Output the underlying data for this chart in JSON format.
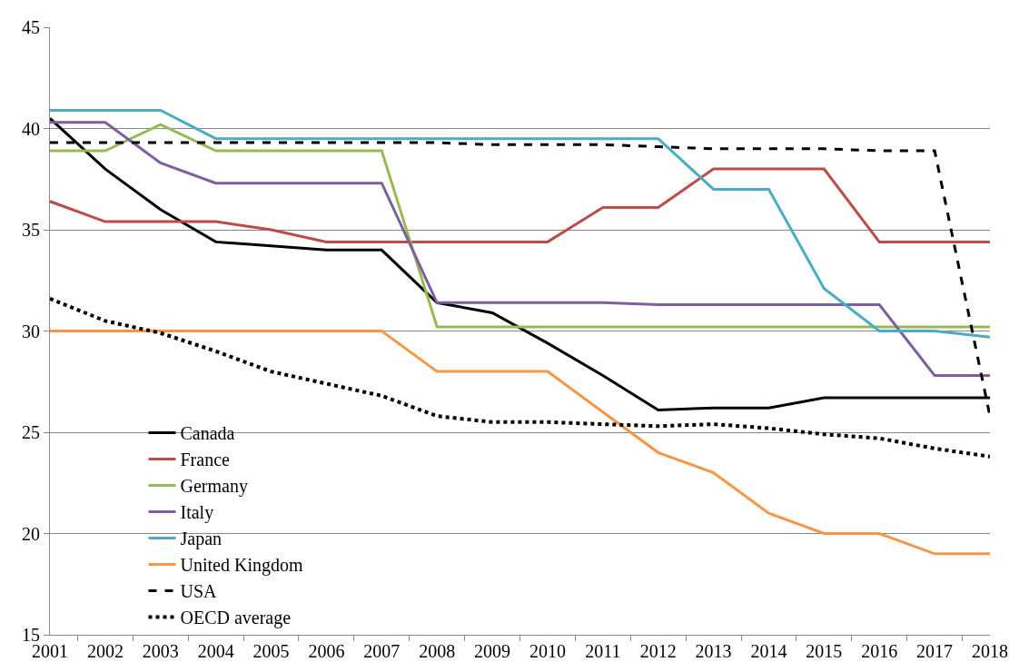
{
  "chart_data": {
    "type": "line",
    "categories": [
      "2001",
      "2002",
      "2003",
      "2004",
      "2005",
      "2006",
      "2007",
      "2008",
      "2009",
      "2010",
      "2011",
      "2012",
      "2013",
      "2014",
      "2015",
      "2016",
      "2017",
      "2018"
    ],
    "series": [
      {
        "name": "Canada",
        "color": "#000000",
        "line_style": "solid",
        "values": [
          40.5,
          38,
          36,
          34.4,
          34.2,
          34,
          34,
          31.4,
          30.9,
          29.4,
          27.8,
          26.1,
          26.2,
          26.2,
          26.7,
          26.7,
          26.7,
          26.7
        ]
      },
      {
        "name": "France",
        "color": "#be4b48",
        "line_style": "solid",
        "values": [
          36.4,
          35.4,
          35.4,
          35.4,
          35,
          34.4,
          34.4,
          34.4,
          34.4,
          34.4,
          36.1,
          36.1,
          38,
          38,
          38,
          34.4,
          34.4,
          34.4
        ]
      },
      {
        "name": "Germany",
        "color": "#98b954",
        "line_style": "solid",
        "values": [
          38.9,
          38.9,
          40.2,
          38.9,
          38.9,
          38.9,
          38.9,
          30.2,
          30.2,
          30.2,
          30.2,
          30.2,
          30.2,
          30.2,
          30.2,
          30.2,
          30.2,
          30.2
        ]
      },
      {
        "name": "Italy",
        "color": "#7d5fa0",
        "line_style": "solid",
        "values": [
          40.3,
          40.3,
          38.3,
          37.3,
          37.3,
          37.3,
          37.3,
          31.4,
          31.4,
          31.4,
          31.4,
          31.3,
          31.3,
          31.3,
          31.3,
          31.3,
          27.8,
          27.8
        ]
      },
      {
        "name": "Japan",
        "color": "#4bacc6",
        "line_style": "solid",
        "values": [
          40.9,
          40.9,
          40.9,
          39.5,
          39.5,
          39.5,
          39.5,
          39.5,
          39.5,
          39.5,
          39.5,
          39.5,
          37,
          37,
          32.1,
          30,
          30,
          29.7
        ]
      },
      {
        "name": "United Kingdom",
        "color": "#f79646",
        "line_style": "solid",
        "values": [
          30,
          30,
          30,
          30,
          30,
          30,
          30,
          28,
          28,
          28,
          26,
          24,
          23,
          21,
          20,
          20,
          19,
          19
        ]
      },
      {
        "name": "USA",
        "color": "#000000",
        "line_style": "dashed",
        "values": [
          39.3,
          39.3,
          39.3,
          39.3,
          39.3,
          39.3,
          39.3,
          39.3,
          39.2,
          39.2,
          39.2,
          39.1,
          39,
          39,
          39,
          38.9,
          38.9,
          25.8
        ]
      },
      {
        "name": "OECD average",
        "color": "#000000",
        "line_style": "dotted",
        "values": [
          31.6,
          30.5,
          29.9,
          29,
          28,
          27.4,
          26.8,
          25.8,
          25.5,
          25.5,
          25.4,
          25.3,
          25.4,
          25.2,
          24.9,
          24.7,
          24.2,
          23.8
        ]
      }
    ],
    "ylim": [
      15,
      45
    ],
    "yticks": [
      15,
      20,
      25,
      30,
      35,
      40,
      45
    ],
    "grid": "y",
    "legend": "bottom left",
    "marker": "none"
  }
}
